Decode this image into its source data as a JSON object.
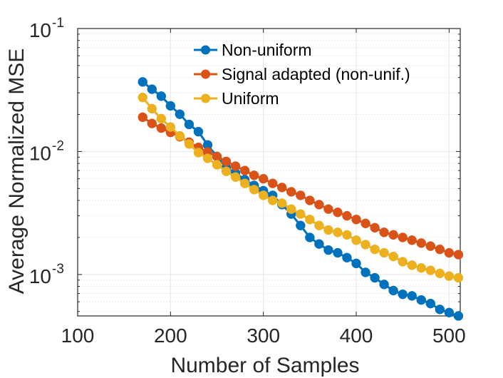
{
  "chart_data": {
    "type": "line",
    "xlabel": "Number of Samples",
    "ylabel": "Average Normalized MSE",
    "xlim": [
      100,
      512
    ],
    "ylim": [
      0.00046,
      0.1
    ],
    "yscale": "log",
    "grid": true,
    "legend_position": "top-right",
    "x_ticks": [
      {
        "value": 100,
        "label": "100"
      },
      {
        "value": 200,
        "label": "200"
      },
      {
        "value": 300,
        "label": "300"
      },
      {
        "value": 400,
        "label": "400"
      },
      {
        "value": 500,
        "label": "500"
      }
    ],
    "y_ticks": [
      {
        "value": 0.1,
        "base": "10",
        "exp": "-1"
      },
      {
        "value": 0.01,
        "base": "10",
        "exp": "-2"
      },
      {
        "value": 0.001,
        "base": "10",
        "exp": "-3"
      }
    ],
    "x": [
      170,
      180,
      190,
      200,
      210,
      220,
      230,
      240,
      250,
      260,
      270,
      280,
      290,
      300,
      310,
      320,
      330,
      340,
      350,
      360,
      370,
      380,
      390,
      400,
      410,
      420,
      430,
      440,
      450,
      460,
      470,
      480,
      490,
      500,
      510
    ],
    "series": [
      {
        "name": "Non-uniform",
        "color": "#0072BD",
        "values": [
          0.0368,
          0.0321,
          0.0282,
          0.0235,
          0.0201,
          0.0166,
          0.0145,
          0.0113,
          0.0091,
          0.0074,
          0.0067,
          0.0059,
          0.0053,
          0.0048,
          0.0044,
          0.0037,
          0.0031,
          0.0025,
          0.002,
          0.00177,
          0.00158,
          0.0015,
          0.00137,
          0.00123,
          0.00104,
          0.00094,
          0.00083,
          0.00074,
          0.00069,
          0.00067,
          0.00062,
          0.00058,
          0.00052,
          0.00049,
          0.00046
        ]
      },
      {
        "name": "Signal adapted (non-unif.)",
        "color": "#D95319",
        "values": [
          0.019,
          0.0169,
          0.0155,
          0.0143,
          0.0132,
          0.0119,
          0.0108,
          0.0099,
          0.0091,
          0.0083,
          0.0076,
          0.007,
          0.0064,
          0.006,
          0.0055,
          0.0051,
          0.0047,
          0.0044,
          0.004,
          0.0037,
          0.0034,
          0.0032,
          0.003,
          0.0028,
          0.0026,
          0.0024,
          0.0022,
          0.0021,
          0.002,
          0.0019,
          0.0018,
          0.0017,
          0.0016,
          0.0015,
          0.00145
        ]
      },
      {
        "name": "Uniform",
        "color": "#EDB120",
        "values": [
          0.0275,
          0.0223,
          0.0185,
          0.0158,
          0.0134,
          0.0115,
          0.0098,
          0.0088,
          0.0078,
          0.0069,
          0.0062,
          0.0055,
          0.0049,
          0.0044,
          0.004,
          0.0038,
          0.0034,
          0.0031,
          0.0028,
          0.0025,
          0.0023,
          0.0022,
          0.0021,
          0.0019,
          0.00175,
          0.0016,
          0.0015,
          0.0014,
          0.00127,
          0.00119,
          0.00113,
          0.00108,
          0.00102,
          0.00097,
          0.00094
        ]
      }
    ]
  }
}
